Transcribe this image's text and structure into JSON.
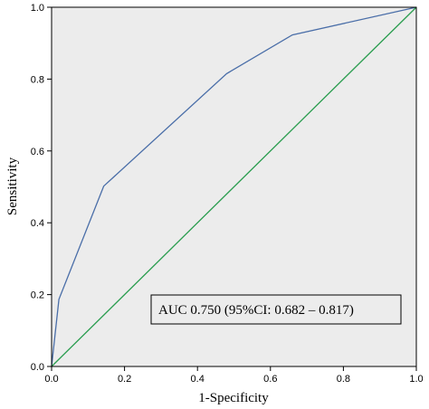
{
  "chart_data": {
    "type": "line",
    "title": "",
    "xlabel": "1-Specificity",
    "ylabel": "Sensitivity",
    "xlim": [
      0,
      1
    ],
    "ylim": [
      0,
      1
    ],
    "x_ticks": [
      "0.0",
      "0.2",
      "0.4",
      "0.6",
      "0.8",
      "1.0"
    ],
    "y_ticks": [
      "0.0",
      "0.2",
      "0.4",
      "0.6",
      "0.8",
      "1.0"
    ],
    "grid": false,
    "legend": "none",
    "plot_background": "#ececec",
    "series": [
      {
        "color": "#4a6ea8",
        "x": [
          0.0,
          0.02,
          0.143,
          0.48,
          0.66,
          1.0
        ],
        "y": [
          0.0,
          0.187,
          0.502,
          0.815,
          0.923,
          1.0
        ]
      },
      {
        "color": "#2a9d4f",
        "x": [
          0.0,
          1.0
        ],
        "y": [
          0.0,
          1.0
        ]
      }
    ],
    "annotations": [
      {
        "text": "AUC 0.750 (95%CI: 0.682 – 0.817)",
        "position": "bottom-right"
      }
    ]
  }
}
